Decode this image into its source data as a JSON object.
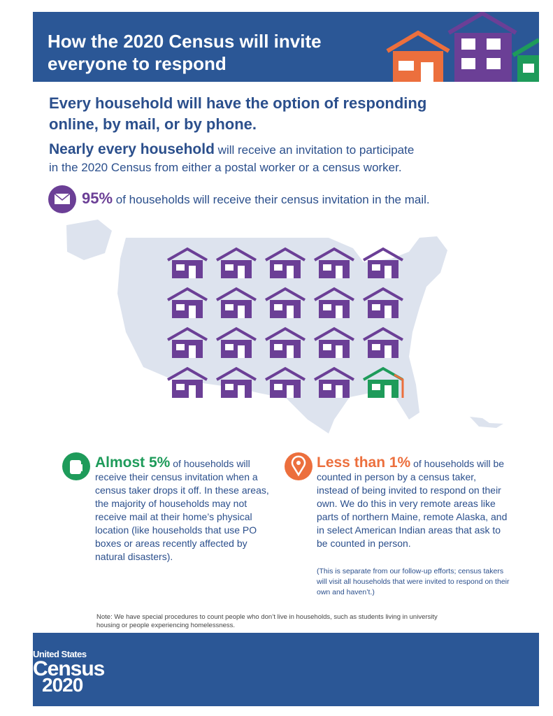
{
  "header": {
    "title_lines": [
      "How the 2020 Census will invite",
      "everyone to respond"
    ]
  },
  "headline_lines": [
    "Every household will have the option of responding",
    "online, by mail, or by phone."
  ],
  "intro": {
    "emphasis": "Nearly every household",
    "lines": [
      " will receive an invitation to participate",
      "in the 2020 Census from either a postal worker or a census worker."
    ]
  },
  "mail": {
    "stat": "95%",
    "text": " of households will receive their census invitation in the mail."
  },
  "drop_off": {
    "stat": "Almost 5%",
    "text": " of households will receive their census invitation when a census taker drops it off. In these areas, the majority of households may not receive mail at their home’s physical location (like households that use PO boxes or areas recently affected by natural disasters)."
  },
  "in_person": {
    "stat": "Less than 1%",
    "text": " of households will be counted in person by a census taker, instead of being invited to respond on their own. We do this in very remote areas like parts of northern Maine, remote Alaska, and in select American Indian areas that ask to be counted in person.",
    "aside": "(This is separate from our follow-up efforts; census takers will visit all households that were invited to respond on their own and haven’t.)"
  },
  "note": "Note: We have special procedures to count people who don’t live in households, such as students living in university housing or people experiencing homelessness.",
  "footer": {
    "logo_top": "United States",
    "logo_mid": "Census",
    "logo_bottom": "2020"
  }
}
